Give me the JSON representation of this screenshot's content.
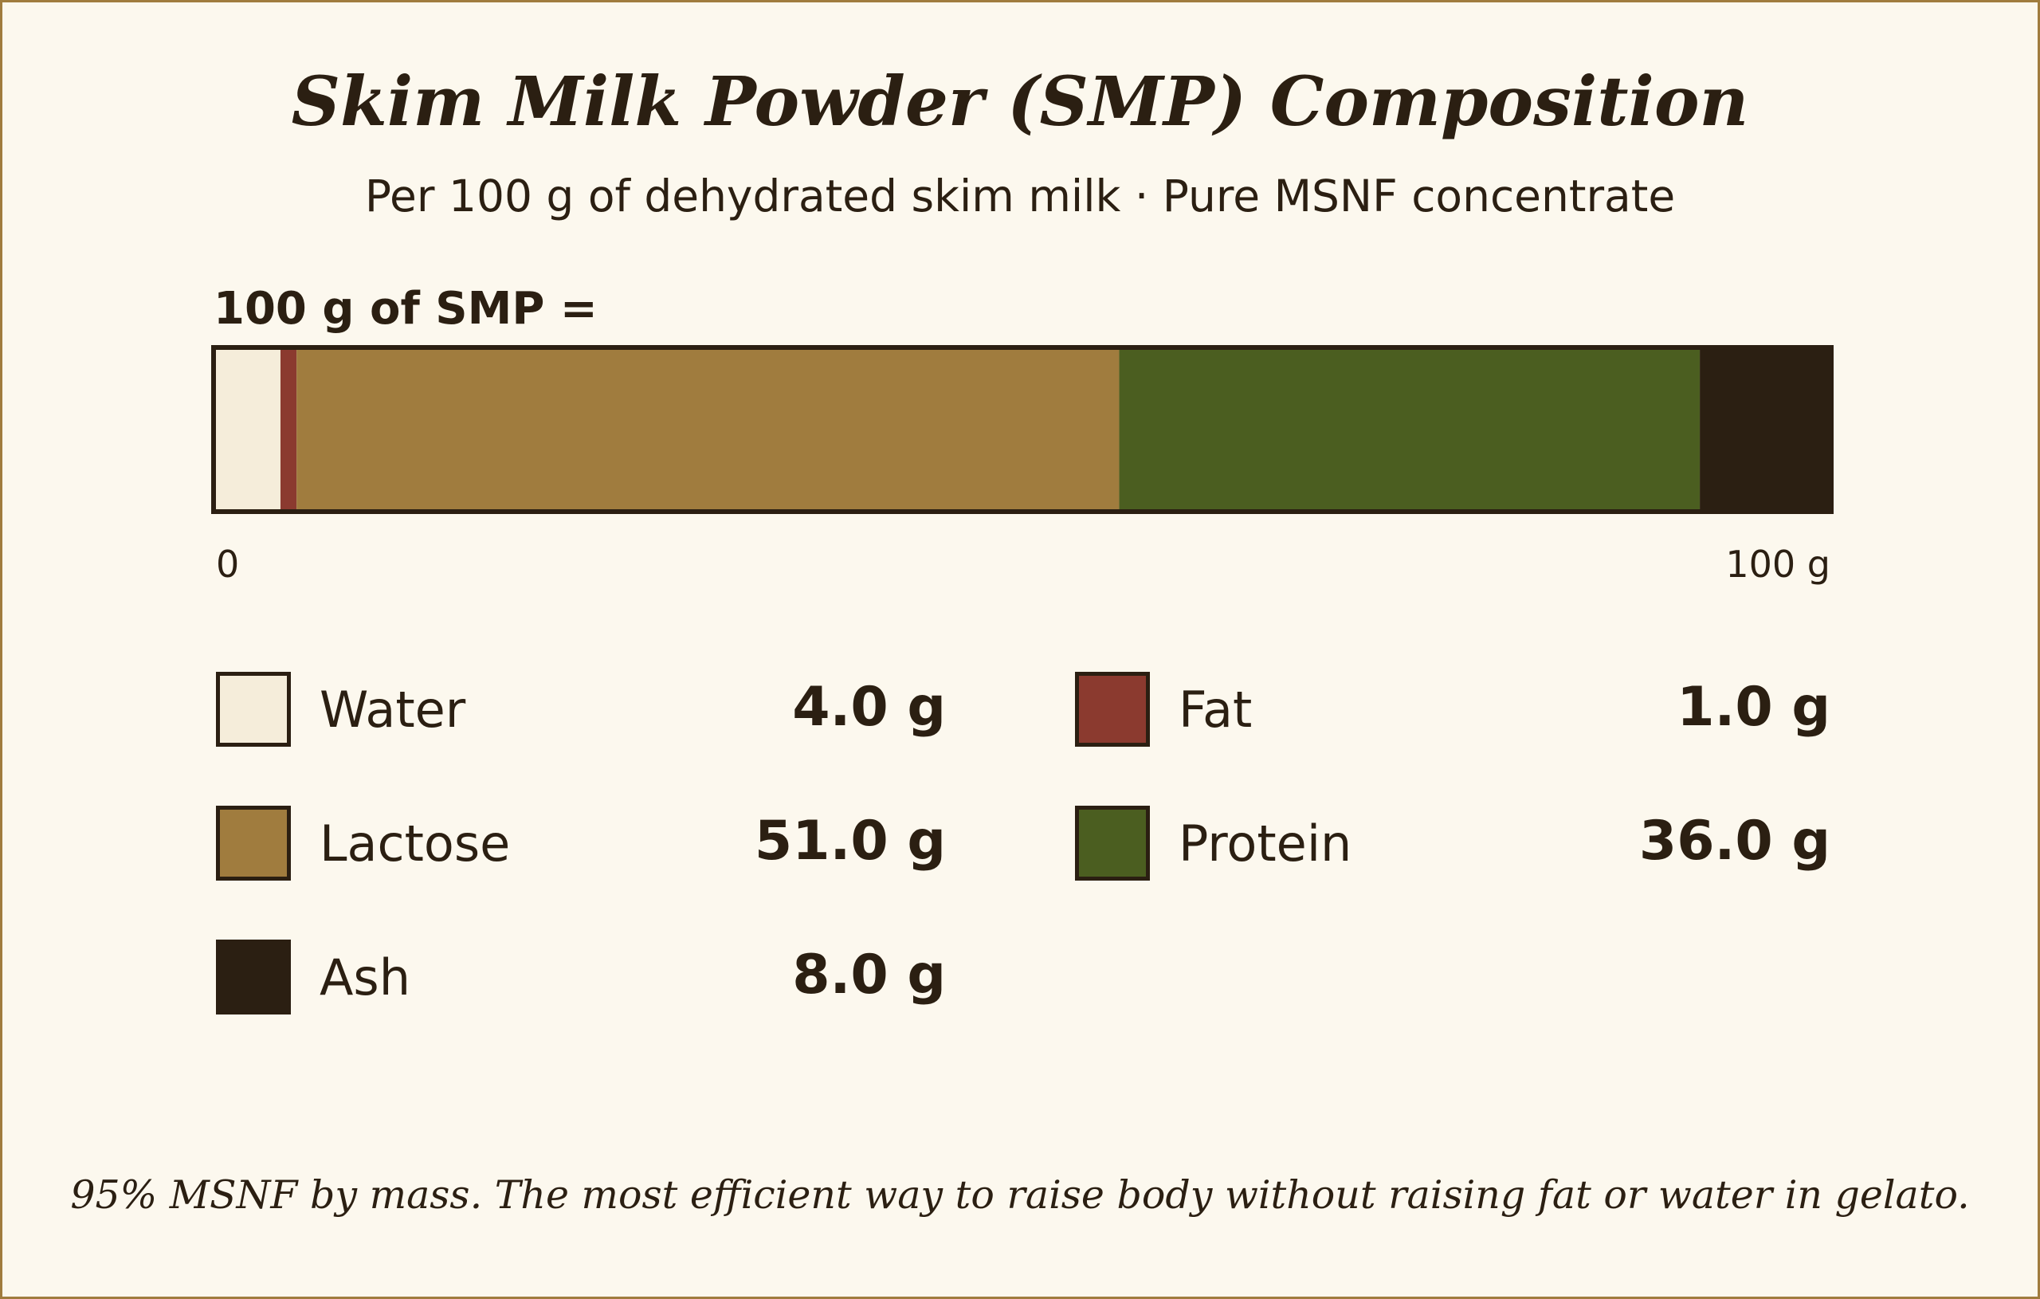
{
  "title": "Skim Milk Powder (SMP) Composition",
  "subtitle": "Per 100 g of dehydrated skim milk · Pure MSNF concentrate",
  "bar_label": "100 g of SMP =",
  "footnote": "95% MSNF by mass. The most efficient way to raise body without raising fat or water in gelato.",
  "colors": {
    "background": "#fcf8ee",
    "frame": "#a07c3e",
    "text": "#2b1f12"
  },
  "chart_data": {
    "type": "bar",
    "orientation": "horizontal-stacked",
    "total": 100,
    "unit": "g",
    "xlim": [
      0,
      100
    ],
    "tick_labels": [
      "0",
      "100 g"
    ],
    "legend_placement": "below",
    "series": [
      {
        "name": "Water",
        "value": 4.0,
        "display": "4.0 g",
        "color": "#f5edda"
      },
      {
        "name": "Fat",
        "value": 1.0,
        "display": "1.0 g",
        "color": "#8b3a2f"
      },
      {
        "name": "Lactose",
        "value": 51.0,
        "display": "51.0 g",
        "color": "#a07c3e"
      },
      {
        "name": "Protein",
        "value": 36.0,
        "display": "36.0 g",
        "color": "#4b5e20"
      },
      {
        "name": "Ash",
        "value": 8.0,
        "display": "8.0 g",
        "color": "#2b1f12"
      }
    ]
  }
}
